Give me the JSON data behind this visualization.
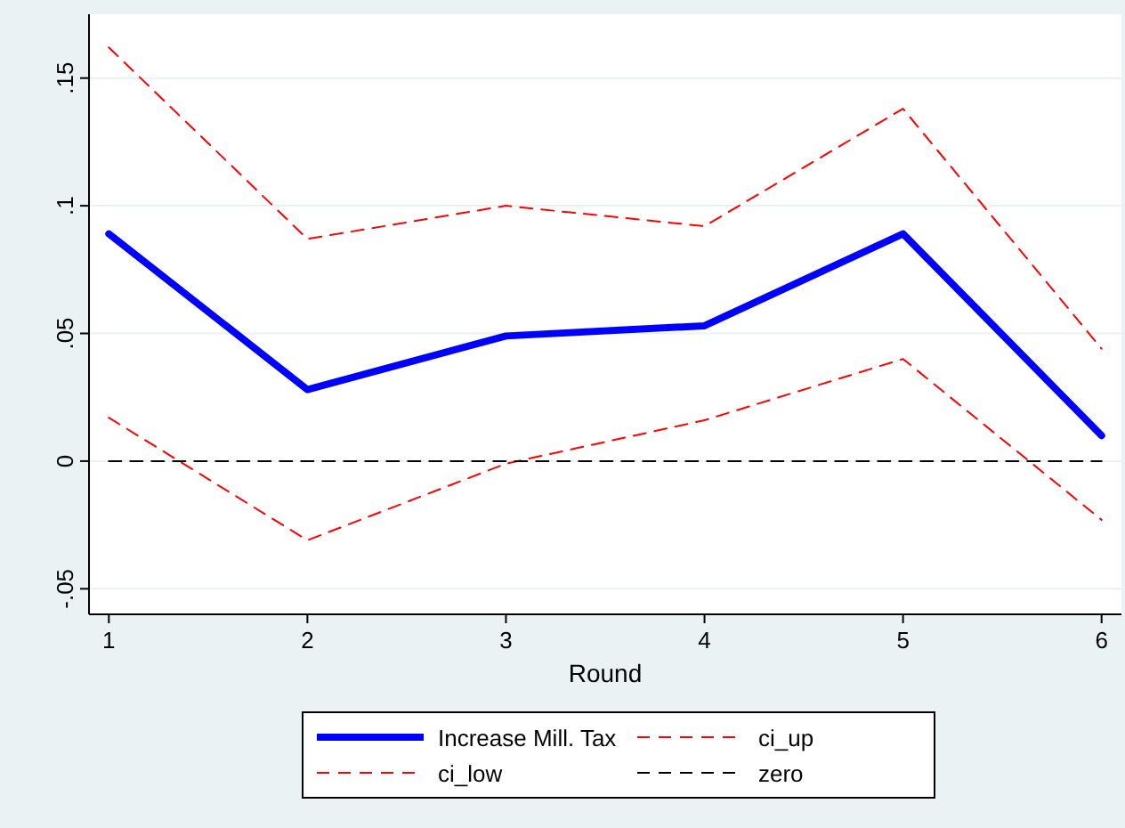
{
  "chart_data": {
    "type": "line",
    "xlabel": "Round",
    "x": [
      1,
      2,
      3,
      4,
      5,
      6
    ],
    "series": [
      {
        "name": "Increase Mill. Tax",
        "color": "#0000ff",
        "values": [
          0.089,
          0.028,
          0.049,
          0.053,
          0.089,
          0.01
        ],
        "line_style": "solid"
      },
      {
        "name": "ci_up",
        "color": "#ff0000",
        "values": [
          0.162,
          0.087,
          0.1,
          0.092,
          0.138,
          0.044
        ],
        "line_style": "dashed"
      },
      {
        "name": "ci_low",
        "color": "#ff0000",
        "values": [
          0.017,
          -0.031,
          -0.001,
          0.016,
          0.04,
          -0.023
        ],
        "line_style": "dashed"
      },
      {
        "name": "zero",
        "color": "#000000",
        "values": [
          0,
          0,
          0,
          0,
          0,
          0
        ],
        "line_style": "dashed"
      }
    ],
    "xlim": [
      0.9,
      6.1
    ],
    "xticks": [
      1,
      2,
      3,
      4,
      5,
      6
    ],
    "ylim": [
      -0.06,
      0.175
    ],
    "yticks": [
      {
        "value": -0.05,
        "label": "-.05"
      },
      {
        "value": 0,
        "label": "0"
      },
      {
        "value": 0.05,
        "label": ".05"
      },
      {
        "value": 0.1,
        "label": ".1"
      },
      {
        "value": 0.15,
        "label": ".15"
      }
    ],
    "grid": "y",
    "legend": "bottom",
    "marker": "none"
  }
}
